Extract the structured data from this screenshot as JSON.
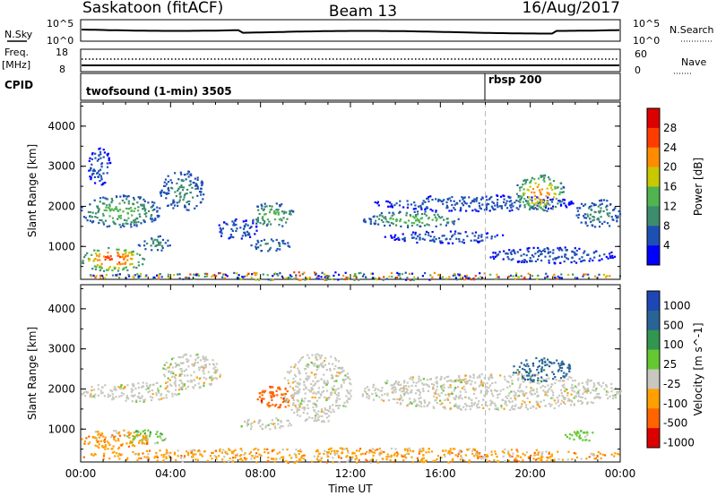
{
  "header": {
    "station": "Saskatoon (fitACF)",
    "beam": "Beam 13",
    "date": "16/Aug/2017"
  },
  "labels": {
    "nsky": "N.Sky",
    "nsky_top": "10^5",
    "nsky_bottom": "10^0",
    "nsearch": "N.Search",
    "nsearch_top": "10^5",
    "nsearch_bottom": "10^0",
    "freq_top": "Freq.",
    "freq_bottom": "[MHz]",
    "freq_max": "18",
    "freq_min": "8",
    "nave": "Nave",
    "nave_max": "60",
    "nave_min": "0",
    "cpid": "CPID",
    "cpid_1": "twofsound (1-min) 3505",
    "cpid_2": "rbsp 200"
  },
  "colors": {
    "scatter_blue": "#1428c8",
    "background": "#ffffff",
    "axis": "#000000"
  },
  "chart_data": [
    {
      "type": "heatmap",
      "title": "",
      "xlabel": "Time UT",
      "ylabel": "Slant Range [km]",
      "x_ticks": [
        "00:00",
        "04:00",
        "08:00",
        "12:00",
        "16:00",
        "20:00",
        "00:00"
      ],
      "y_ticks": [
        1000,
        2000,
        3000,
        4000
      ],
      "ylim": [
        180,
        4600
      ],
      "xlim_hours": [
        0,
        24
      ],
      "colorbar": {
        "label": "Power [dB]",
        "ticks": [
          "4",
          "8",
          "12",
          "16",
          "20",
          "24",
          "28"
        ],
        "colors": [
          "#0000ff",
          "#1e50b4",
          "#3c8c6e",
          "#50b450",
          "#c8c800",
          "#ff8c00",
          "#ff3c00",
          "#dc0000"
        ]
      },
      "regions": [
        {
          "t0": 0.0,
          "t1": 2.8,
          "r0": 400,
          "r1": 1000,
          "level": 6
        },
        {
          "t0": 0.0,
          "t1": 3.5,
          "r0": 1500,
          "r1": 2300,
          "level": 3
        },
        {
          "t0": 0.3,
          "t1": 1.3,
          "r0": 2500,
          "r1": 3500,
          "level": 1
        },
        {
          "t0": 2.5,
          "t1": 4.0,
          "r0": 900,
          "r1": 1300,
          "level": 2
        },
        {
          "t0": 3.5,
          "t1": 5.5,
          "r0": 1900,
          "r1": 2900,
          "level": 2
        },
        {
          "t0": 6.0,
          "t1": 7.8,
          "r0": 1200,
          "r1": 1700,
          "level": 1
        },
        {
          "t0": 7.5,
          "t1": 9.5,
          "r0": 1500,
          "r1": 2100,
          "level": 3
        },
        {
          "t0": 7.5,
          "t1": 9.3,
          "r0": 900,
          "r1": 1200,
          "level": 2
        },
        {
          "t0": 12.5,
          "t1": 17.0,
          "r0": 1500,
          "r1": 1900,
          "level": 3
        },
        {
          "t0": 13.5,
          "t1": 19.0,
          "r0": 1100,
          "r1": 1400,
          "level": 1
        },
        {
          "t0": 13.0,
          "t1": 22.0,
          "r0": 1900,
          "r1": 2300,
          "level": 1
        },
        {
          "t0": 19.3,
          "t1": 21.5,
          "r0": 1900,
          "r1": 2800,
          "level": 5
        },
        {
          "t0": 18.0,
          "t1": 23.8,
          "r0": 600,
          "r1": 1000,
          "level": 1
        },
        {
          "t0": 22.0,
          "t1": 24.0,
          "r0": 1500,
          "r1": 2200,
          "level": 2
        },
        {
          "t0": 0.0,
          "t1": 24.0,
          "r0": 180,
          "r1": 380,
          "level": 4
        }
      ]
    },
    {
      "type": "heatmap",
      "title": "",
      "xlabel": "Time UT",
      "ylabel": "Slant Range [km]",
      "x_ticks": [
        "00:00",
        "04:00",
        "08:00",
        "12:00",
        "16:00",
        "20:00",
        "00:00"
      ],
      "y_ticks": [
        1000,
        2000,
        3000,
        4000
      ],
      "ylim": [
        180,
        4600
      ],
      "xlim_hours": [
        0,
        24
      ],
      "colorbar": {
        "label": "Velocity [m s^-1]",
        "ticks": [
          "1000",
          "500",
          "100",
          "25",
          "-25",
          "-100",
          "-500",
          "-1000"
        ],
        "colors": [
          "#1e46b4",
          "#286496",
          "#329650",
          "#64c832",
          "#c8c8c0",
          "#ffa000",
          "#ff6400",
          "#dc0000"
        ]
      },
      "regions": [
        {
          "t0": 0.0,
          "t1": 4.5,
          "r0": 1700,
          "r1": 2200,
          "level": 4
        },
        {
          "t0": 0.0,
          "t1": 3.0,
          "r0": 500,
          "r1": 1000,
          "level": 4
        },
        {
          "t0": 2.0,
          "t1": 3.8,
          "r0": 650,
          "r1": 1000,
          "level": 3
        },
        {
          "t0": 2.6,
          "t1": 3.0,
          "r0": 650,
          "r1": 900,
          "level": 5
        },
        {
          "t0": 3.5,
          "t1": 6.2,
          "r0": 2000,
          "r1": 2900,
          "level": 4
        },
        {
          "t0": 7.0,
          "t1": 9.5,
          "r0": 1000,
          "r1": 1300,
          "level": 4
        },
        {
          "t0": 7.8,
          "t1": 9.4,
          "r0": 1500,
          "r1": 2100,
          "level": 6
        },
        {
          "t0": 9.0,
          "t1": 12.0,
          "r0": 1200,
          "r1": 2900,
          "level": 4
        },
        {
          "t0": 12.5,
          "t1": 24.0,
          "r0": 1500,
          "r1": 2400,
          "level": 4
        },
        {
          "t0": 19.2,
          "t1": 21.8,
          "r0": 2200,
          "r1": 2800,
          "level": 1
        },
        {
          "t0": 21.5,
          "t1": 23.0,
          "r0": 700,
          "r1": 1000,
          "level": 3
        },
        {
          "t0": 0.0,
          "t1": 24.0,
          "r0": 180,
          "r1": 550,
          "level": 5
        }
      ]
    }
  ]
}
